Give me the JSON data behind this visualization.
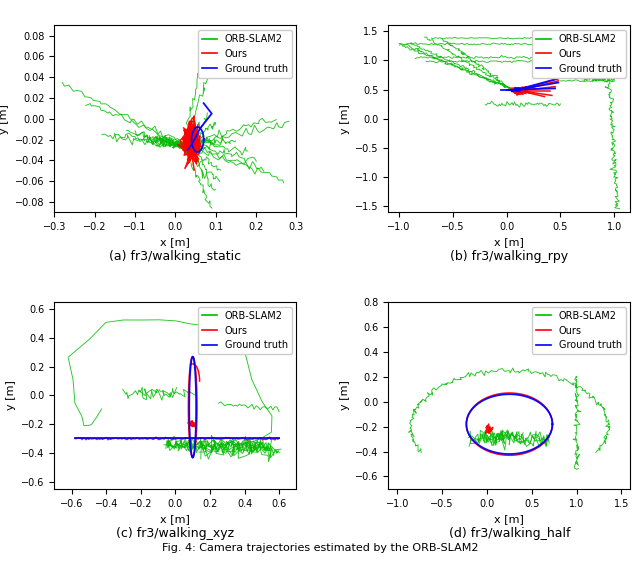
{
  "fig_width": 6.4,
  "fig_height": 5.62,
  "dpi": 100,
  "subplots": [
    {
      "label": "(a) fr3/walking_static",
      "xlim": [
        -0.3,
        0.3
      ],
      "ylim": [
        -0.09,
        0.09
      ],
      "xlabel": "x [m]",
      "ylabel": "y [m]"
    },
    {
      "label": "(b) fr3/walking_rpy",
      "xlim": [
        -1.1,
        1.15
      ],
      "ylim": [
        -1.6,
        1.6
      ],
      "xlabel": "x [m]",
      "ylabel": "y [m]"
    },
    {
      "label": "(c) fr3/walking_xyz",
      "xlim": [
        -0.7,
        0.7
      ],
      "ylim": [
        -0.65,
        0.65
      ],
      "xlabel": "x [m]",
      "ylabel": "y [m]"
    },
    {
      "label": "(d) fr3/walking_half",
      "xlim": [
        -1.1,
        1.6
      ],
      "ylim": [
        -0.7,
        0.8
      ],
      "xlabel": "x [m]",
      "ylabel": "y [m]"
    }
  ],
  "colors": {
    "orb": "#00BB00",
    "ours": "#FF0000",
    "gt": "#0000FF"
  },
  "legend_labels": [
    "ORB-SLAM2",
    "Ours",
    "Ground truth"
  ]
}
